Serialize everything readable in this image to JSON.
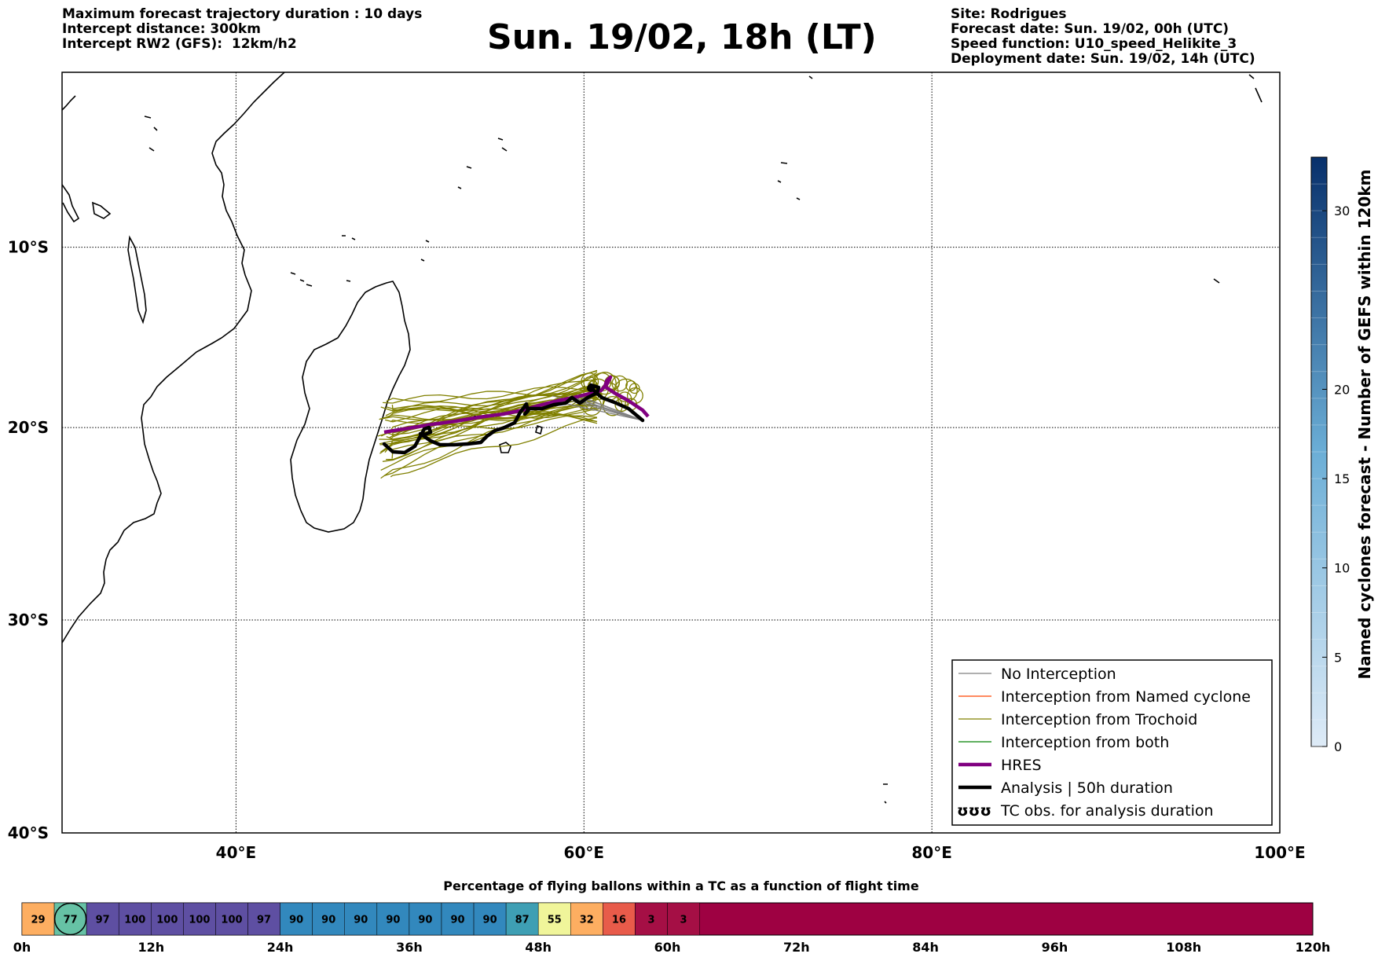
{
  "header": {
    "left": [
      "Maximum forecast trajectory duration : 10 days",
      "Intercept distance: 300km",
      "Intercept RW2 (GFS):  12km/h2"
    ],
    "title": "Sun. 19/02, 18h (LT)",
    "right": [
      "Site: Rodrigues",
      "Forecast date: Sun. 19/02, 00h (UTC)",
      "Speed function: U10_speed_Helikite_3",
      "Deployment date: Sun. 19/02, 14h (UTC)"
    ]
  },
  "map": {
    "lon_range": [
      30,
      100
    ],
    "lat_range": [
      -40,
      0
    ],
    "lat_ticks": [
      {
        "value": -10,
        "label": "10°S"
      },
      {
        "value": -20,
        "label": "20°S"
      },
      {
        "value": -30,
        "label": "30°S"
      },
      {
        "value": -40,
        "label": "40°S"
      }
    ],
    "lon_ticks": [
      {
        "value": 40,
        "label": "40°E"
      },
      {
        "value": 60,
        "label": "60°E"
      },
      {
        "value": 80,
        "label": "80°E"
      },
      {
        "value": 100,
        "label": "100°E"
      }
    ],
    "colors": {
      "trochoid": "#808000",
      "hres": "#800080",
      "analysis": "#000000",
      "no_interception": "#808080",
      "named_cyclone": "#ff4500",
      "both": "#008000"
    }
  },
  "legend": {
    "items": [
      {
        "label": "No Interception",
        "color": "#808080",
        "style": "thin"
      },
      {
        "label": "Interception from Named cyclone",
        "color": "#ff4500",
        "style": "thin"
      },
      {
        "label": "Interception from Trochoid",
        "color": "#808000",
        "style": "thin"
      },
      {
        "label": "Interception from both",
        "color": "#008000",
        "style": "thin"
      },
      {
        "label": "HRES",
        "color": "#800080",
        "style": "thick"
      },
      {
        "label": "Analysis | 50h duration",
        "color": "#000000",
        "style": "thick"
      },
      {
        "label": "TC obs. for analysis duration",
        "color": "#000000",
        "style": "symbol"
      }
    ],
    "symbol": "ʊʊʊ"
  },
  "colorbar": {
    "label": "Named cyclones forecast - Number of GEFS within 120km",
    "ticks": [
      0,
      5,
      10,
      15,
      20,
      30
    ],
    "max": 33,
    "color_low": "#deebf7",
    "color_high": "#08306b"
  },
  "timeline": {
    "title": "Percentage of flying ballons within a TC as a function of flight time",
    "max_hours": 120,
    "tick_labels": [
      "0h",
      "12h",
      "24h",
      "36h",
      "48h",
      "60h",
      "72h",
      "84h",
      "96h",
      "108h",
      "120h"
    ],
    "cells": [
      {
        "value": "29",
        "color": "#fdae61"
      },
      {
        "value": "77",
        "color": "#66c2a5",
        "circled": true
      },
      {
        "value": "97",
        "color": "#5e4fa2"
      },
      {
        "value": "100",
        "color": "#5e4fa2"
      },
      {
        "value": "100",
        "color": "#5e4fa2"
      },
      {
        "value": "100",
        "color": "#5e4fa2"
      },
      {
        "value": "100",
        "color": "#5e4fa2"
      },
      {
        "value": "97",
        "color": "#5e4fa2"
      },
      {
        "value": "90",
        "color": "#3288bd"
      },
      {
        "value": "90",
        "color": "#3288bd"
      },
      {
        "value": "90",
        "color": "#3288bd"
      },
      {
        "value": "90",
        "color": "#3288bd"
      },
      {
        "value": "90",
        "color": "#3288bd"
      },
      {
        "value": "90",
        "color": "#3288bd"
      },
      {
        "value": "90",
        "color": "#3288bd"
      },
      {
        "value": "87",
        "color": "#3e9fb4"
      },
      {
        "value": "55",
        "color": "#f0f59a"
      },
      {
        "value": "32",
        "color": "#fdae61"
      },
      {
        "value": "16",
        "color": "#e85b4a"
      },
      {
        "value": "3",
        "color": "#a50f45"
      },
      {
        "value": "3",
        "color": "#a50f45"
      }
    ],
    "rest_color": "#9e0142"
  }
}
